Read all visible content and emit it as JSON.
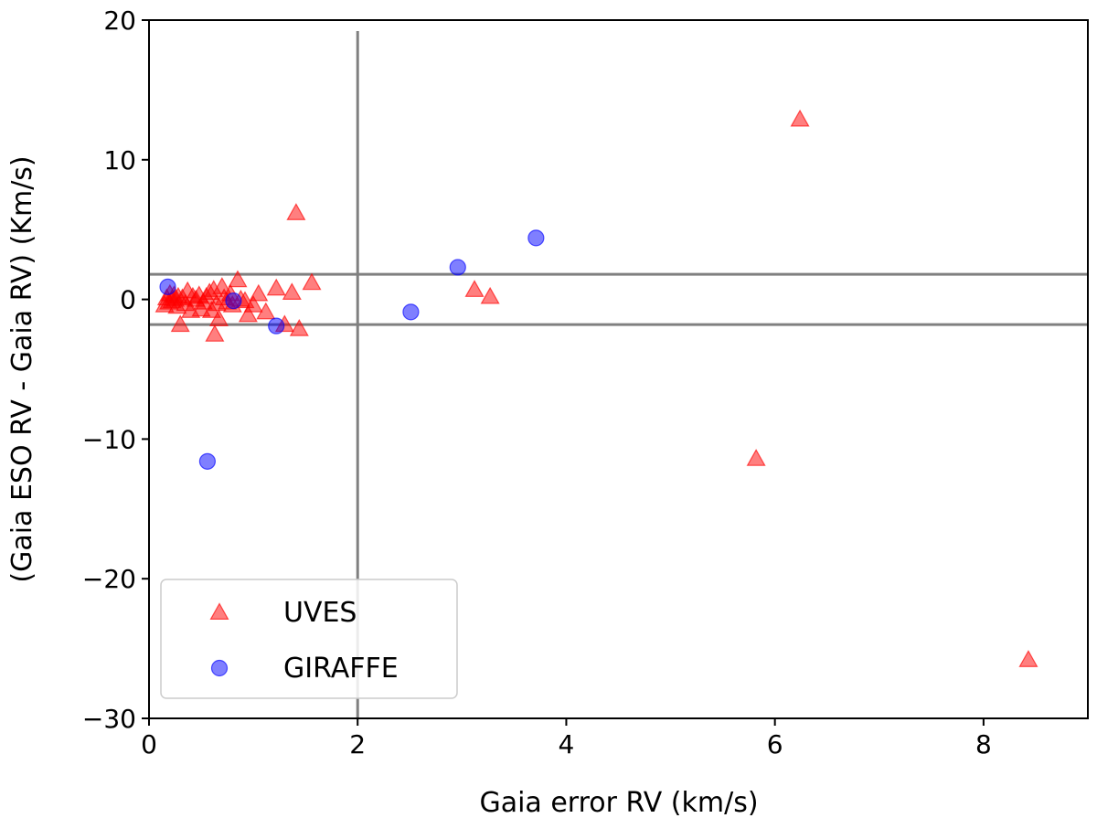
{
  "chart_data": {
    "type": "scatter",
    "xlabel": "Gaia error RV (km/s)",
    "ylabel": "(Gaia ESO RV - Gaia RV) (Km/s)",
    "xlim": [
      0,
      9
    ],
    "ylim": [
      -30,
      20
    ],
    "x_ticks": [
      0,
      2,
      4,
      6,
      8
    ],
    "y_ticks": [
      -30,
      -20,
      -10,
      0,
      10,
      20
    ],
    "x_tick_labels": [
      "0",
      "2",
      "4",
      "6",
      "8"
    ],
    "y_tick_labels": [
      "−30",
      "−20",
      "−10",
      "0",
      "10",
      "20"
    ],
    "reference_lines": {
      "vertical_x": 2,
      "horizontal_y": [
        1.8,
        -1.8
      ],
      "color": "#808080"
    },
    "legend_position": "lower-left",
    "series": [
      {
        "name": "UVES",
        "marker": "triangle",
        "color": "#ff0000",
        "points": [
          {
            "x": 0.15,
            "y": -0.4
          },
          {
            "x": 0.17,
            "y": 0.1
          },
          {
            "x": 0.19,
            "y": -0.2
          },
          {
            "x": 0.2,
            "y": 0.4
          },
          {
            "x": 0.22,
            "y": -0.1
          },
          {
            "x": 0.24,
            "y": 0.3
          },
          {
            "x": 0.25,
            "y": 0.0
          },
          {
            "x": 0.27,
            "y": -0.5
          },
          {
            "x": 0.28,
            "y": 0.2
          },
          {
            "x": 0.3,
            "y": -1.8
          },
          {
            "x": 0.32,
            "y": 0.1
          },
          {
            "x": 0.35,
            "y": -0.3
          },
          {
            "x": 0.37,
            "y": 0.6
          },
          {
            "x": 0.4,
            "y": -0.8
          },
          {
            "x": 0.42,
            "y": 0.2
          },
          {
            "x": 0.45,
            "y": 0.0
          },
          {
            "x": 0.48,
            "y": 0.3
          },
          {
            "x": 0.5,
            "y": -0.7
          },
          {
            "x": 0.52,
            "y": -0.2
          },
          {
            "x": 0.55,
            "y": 0.2
          },
          {
            "x": 0.58,
            "y": 0.5
          },
          {
            "x": 0.6,
            "y": -0.8
          },
          {
            "x": 0.62,
            "y": 0.7
          },
          {
            "x": 0.63,
            "y": -2.5
          },
          {
            "x": 0.65,
            "y": -0.3
          },
          {
            "x": 0.67,
            "y": -1.4
          },
          {
            "x": 0.7,
            "y": 0.9
          },
          {
            "x": 0.72,
            "y": 0.1
          },
          {
            "x": 0.75,
            "y": -0.2
          },
          {
            "x": 0.78,
            "y": 0.4
          },
          {
            "x": 0.8,
            "y": -0.4
          },
          {
            "x": 0.85,
            "y": 1.4
          },
          {
            "x": 0.88,
            "y": 0.0
          },
          {
            "x": 0.92,
            "y": -0.1
          },
          {
            "x": 0.95,
            "y": -1.1
          },
          {
            "x": 1.0,
            "y": -0.4
          },
          {
            "x": 1.05,
            "y": 0.4
          },
          {
            "x": 1.12,
            "y": -0.9
          },
          {
            "x": 1.22,
            "y": 0.8
          },
          {
            "x": 1.3,
            "y": -1.8
          },
          {
            "x": 1.37,
            "y": 0.5
          },
          {
            "x": 1.41,
            "y": 6.2
          },
          {
            "x": 1.44,
            "y": -2.1
          },
          {
            "x": 1.56,
            "y": 1.2
          },
          {
            "x": 3.12,
            "y": 0.7
          },
          {
            "x": 3.27,
            "y": 0.2
          },
          {
            "x": 5.82,
            "y": -11.4
          },
          {
            "x": 6.24,
            "y": 12.9
          },
          {
            "x": 8.43,
            "y": -25.8
          }
        ]
      },
      {
        "name": "GIRAFFE",
        "marker": "circle",
        "color": "#0000ff",
        "points": [
          {
            "x": 0.18,
            "y": 0.9
          },
          {
            "x": 0.56,
            "y": -11.6
          },
          {
            "x": 0.81,
            "y": -0.1
          },
          {
            "x": 1.22,
            "y": -1.9
          },
          {
            "x": 2.51,
            "y": -0.9
          },
          {
            "x": 2.96,
            "y": 2.3
          },
          {
            "x": 3.71,
            "y": 4.4
          }
        ]
      }
    ],
    "legend": [
      {
        "label": "UVES",
        "marker": "triangle",
        "color": "#ff0000"
      },
      {
        "label": "GIRAFFE",
        "marker": "circle",
        "color": "#0000ff"
      }
    ]
  }
}
